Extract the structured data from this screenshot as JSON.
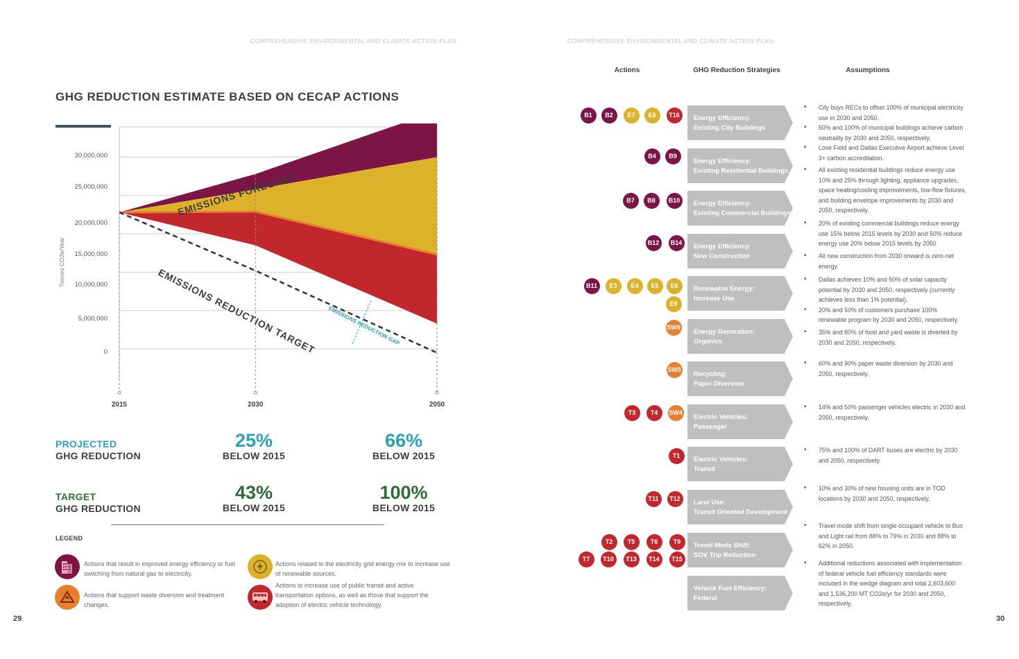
{
  "header_left": "COMPREHENSIVE ENVIRONMENTAL AND CLIMATE ACTION PLAN",
  "header_right": "COMPREHENSIVE ENVIRONMENTAL AND CLIMATE ACTION PLAN",
  "title": "GHG REDUCTION ESTIMATE BASED ON CECAP ACTIONS",
  "page_left": "29",
  "page_right": "30",
  "colors": {
    "purple": "#7c1446",
    "gold": "#ddb22b",
    "red": "#c1272d",
    "orange": "#e77f2e",
    "teal": "#2aa3b4",
    "green": "#2e6b3a",
    "gray": "#bfbfbf"
  },
  "chart_data": {
    "type": "area",
    "title": "",
    "ylabel": "Tonnes CO2e/Year",
    "xlabel": "",
    "x": [
      2015,
      2030,
      2050
    ],
    "x_ticks": [
      "2015",
      "2030",
      "2050"
    ],
    "y_ticks": [
      "30,000,000",
      "25,000,000",
      "20,000,000",
      "15,000,000",
      "10,000,000",
      "5,000,000",
      "0"
    ],
    "annotations": [
      "EMISSIONS FORECAST",
      "EMISSIONS REDUCTION TARGET",
      "EMISSIONS REDUCTION GAP"
    ],
    "ylim": [
      0,
      33000000
    ],
    "grid": true,
    "series": [
      {
        "name": "EMISSIONS FORECAST",
        "x": [
          2015,
          2030,
          2050
        ],
        "values": [
          17800000,
          22800000,
          31000000
        ]
      },
      {
        "x": [
          2015,
          2030,
          2050
        ],
        "values": [
          17800000,
          20800000,
          25000000
        ]
      },
      {
        "x": [
          2015,
          2030,
          2050
        ],
        "values": [
          17800000,
          17900000,
          12300000
        ]
      },
      {
        "x": [
          2015,
          2030,
          2050
        ],
        "values": [
          17800000,
          13500000,
          3300000
        ]
      },
      {
        "name": "EMISSIONS REDUCTION TARGET",
        "x": [
          2015,
          2030,
          2050
        ],
        "values": [
          17800000,
          10200000,
          -500000
        ]
      }
    ]
  },
  "stats": {
    "projected_label_1": "PROJECTED",
    "projected_label_2": "GHG REDUCTION",
    "projected_2030": "25%",
    "projected_2050": "66%",
    "target_label_1": "TARGET",
    "target_label_2": "GHG REDUCTION",
    "target_2030": "43%",
    "target_2050": "100%",
    "below": "BELOW 2015"
  },
  "legend": {
    "title": "LEGEND",
    "items": [
      {
        "icon": "building-icon",
        "text": "Actions that result in improved energy efficiency or fuel switching from natural gas to electricity."
      },
      {
        "icon": "lightning-icon",
        "text": "Actions related to the electricity grid energy mix to increase use of renewable sources."
      },
      {
        "icon": "recycle-icon",
        "text": "Actions that support waste diversion and treatment changes."
      },
      {
        "icon": "bus-icon",
        "text": "Actions to increase use of public transit and active transportation options, as well as those that support the adoption of electric vehicle technology."
      }
    ]
  },
  "columns": {
    "actions": "Actions",
    "strategies": "GHG Reduction Strategies",
    "assumptions": "Assumptions"
  },
  "strategies": [
    {
      "line1": "Energy Efficiency:",
      "line2": "Existing City Buildings"
    },
    {
      "line1": "Energy Efficiency:",
      "line2": "Existing Residential Buildings"
    },
    {
      "line1": "Energy Efficiency:",
      "line2": "Existing Commercial Buildings"
    },
    {
      "line1": "Energy Efficiency:",
      "line2": "New Construction"
    },
    {
      "line1": "Renewable Energy:",
      "line2": "Increase Use"
    },
    {
      "line1": "Energy Generation:",
      "line2": "Organics"
    },
    {
      "line1": "Recycling:",
      "line2": "Paper Diversion"
    },
    {
      "line1": "Electric Vehicles:",
      "line2": "Passenger"
    },
    {
      "line1": "Electric Vehicles:",
      "line2": "Transit"
    },
    {
      "line1": "Land Use:",
      "line2": "Transit Oriented Development"
    },
    {
      "line1": "Travel Mode Shift:",
      "line2": "SOV Trip Reduction"
    },
    {
      "line1": "Vehicle Fuel Efficiency:",
      "line2": "Federal"
    }
  ],
  "badges": [
    {
      "label": "B1",
      "color": "purple"
    },
    {
      "label": "B2",
      "color": "purple"
    },
    {
      "label": "E7",
      "color": "gold"
    },
    {
      "label": "E8",
      "color": "gold"
    },
    {
      "label": "T16",
      "color": "red"
    },
    {
      "label": "B4",
      "color": "purple"
    },
    {
      "label": "B9",
      "color": "purple"
    },
    {
      "label": "B7",
      "color": "purple"
    },
    {
      "label": "B8",
      "color": "purple"
    },
    {
      "label": "B10",
      "color": "purple"
    },
    {
      "label": "B12",
      "color": "purple"
    },
    {
      "label": "B14",
      "color": "purple"
    },
    {
      "label": "B11",
      "color": "purple"
    },
    {
      "label": "E3",
      "color": "gold"
    },
    {
      "label": "E4",
      "color": "gold"
    },
    {
      "label": "E5",
      "color": "gold"
    },
    {
      "label": "E6",
      "color": "gold"
    },
    {
      "label": "E9",
      "color": "gold"
    },
    {
      "label": "SW9",
      "color": "orange"
    },
    {
      "label": "SW5",
      "color": "orange"
    },
    {
      "label": "T3",
      "color": "red"
    },
    {
      "label": "T4",
      "color": "red"
    },
    {
      "label": "SW4",
      "color": "orange"
    },
    {
      "label": "T1",
      "color": "red"
    },
    {
      "label": "T11",
      "color": "red"
    },
    {
      "label": "T12",
      "color": "red"
    },
    {
      "label": "T2",
      "color": "red"
    },
    {
      "label": "T5",
      "color": "red"
    },
    {
      "label": "T6",
      "color": "red"
    },
    {
      "label": "T9",
      "color": "red"
    },
    {
      "label": "T7",
      "color": "red"
    },
    {
      "label": "T10",
      "color": "red"
    },
    {
      "label": "T13",
      "color": "red"
    },
    {
      "label": "T14",
      "color": "red"
    },
    {
      "label": "T15",
      "color": "red"
    }
  ],
  "assumptions": [
    "City buys RECs to offset 100% of municipal electricity use in 2030 and 2050.",
    "50% and 100% of municipal buildings achieve carbon neutrality by 2030 and 2050, respectively.",
    "Love Field and Dallas Executive Airport achieve Level 3+ carbon accreditation.",
    "All existing residential buildings reduce energy use 10% and 25% through lighting, appliance upgrades, space heating/cooling improvements, low-flow fixtures, and building envelope improvements by 2030 and 2050, respectively.",
    "20% of existing commercial buildings reduce energy use 15% below 2015 levels by 2030 and 50% reduce energy use 20% below 2015 levels by 2050",
    "All new construction from 2030 onward is zero-net energy.",
    "Dallas achieves 10% and 50% of solar capacity potential by 2030 and 2050, respectively (currently achieves less than 1% potential).",
    "20% and 50% of customers purchase 100% renewable program by 2030 and 2050, respectively.",
    "35% and 80% of food and yard waste is diverted by 2030 and 2050, respectively.",
    "60% and 90% paper waste diversion by 2030 and 2050, respectively.",
    "14% and 50% passenger vehicles electric in 2030 and 2050, respectively.",
    "75% and 100% of DART buses are electric by 2030 and 2050, respectively.",
    "10% and 30% of new housing units are in TOD locations by 2030 and 2050, respectively.",
    "Travel mode shift from single occupant vehicle to Bus and Light rail from 88% to 79% in 2030 and 88% to 62% in 2050.",
    "Additional reductions associated with implementation of federal vehicle fuel efficiency standards were included in the wedge diagram and total 2,603,600 and 1,536,200 MT CO2e/yr for 2030 and 2050, respectively."
  ]
}
